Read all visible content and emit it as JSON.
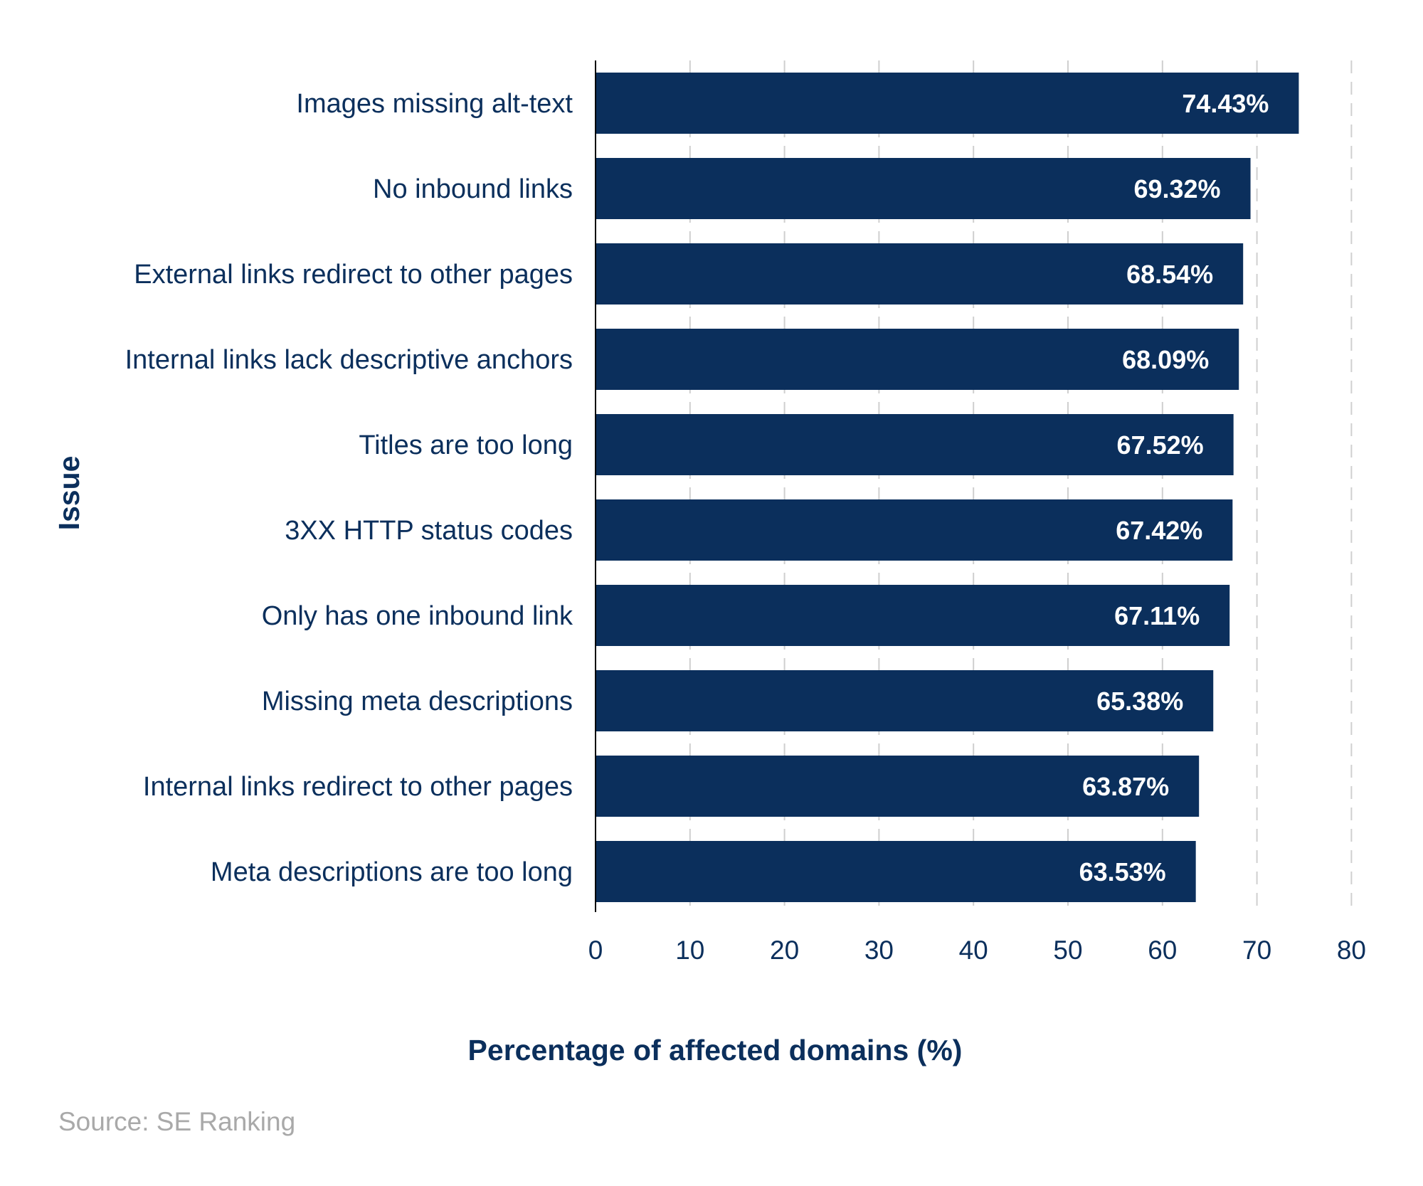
{
  "chart_data": {
    "type": "bar",
    "orientation": "horizontal",
    "categories": [
      "Images missing alt-text",
      "No inbound links",
      "External links redirect to other pages",
      "Internal links lack descriptive anchors",
      "Titles are too long",
      "3XX HTTP status codes",
      "Only has one inbound link",
      "Missing meta descriptions",
      "Internal links redirect to other pages",
      "Meta descriptions are too long"
    ],
    "values": [
      74.43,
      69.32,
      68.54,
      68.09,
      67.52,
      67.42,
      67.11,
      65.38,
      63.87,
      63.53
    ],
    "value_labels": [
      "74.43%",
      "69.32%",
      "68.54%",
      "68.09%",
      "67.52%",
      "67.42%",
      "67.11%",
      "65.38%",
      "63.87%",
      "63.53%"
    ],
    "xlabel": "Percentage of affected domains (%)",
    "ylabel": "Issue",
    "xlim": [
      0,
      80
    ],
    "xticks": [
      0,
      10,
      20,
      30,
      40,
      50,
      60,
      70,
      80
    ],
    "grid": true,
    "bar_color": "#0b2f5c",
    "label_color": "#0b2f5c",
    "source": "Source: SE Ranking"
  }
}
